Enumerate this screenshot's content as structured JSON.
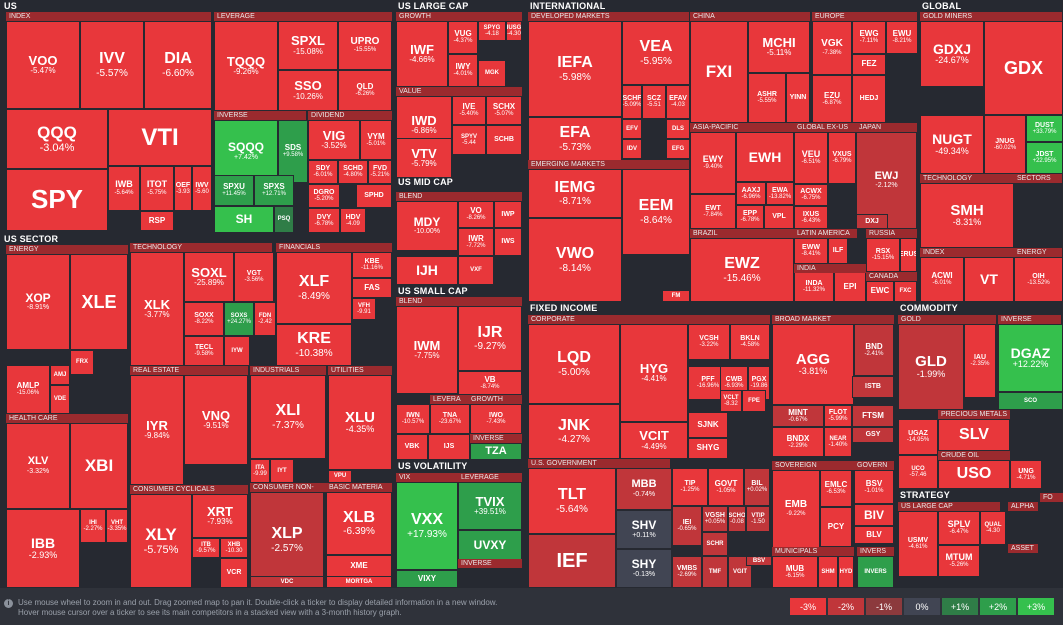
{
  "colors": {
    "r3": "#e8373b",
    "r2": "#c0363a",
    "r1": "#8c3a3d",
    "z": "#414553",
    "g1": "#2f7d47",
    "g2": "#2e9e4b",
    "g3": "#35c04d"
  },
  "sections": [
    {
      "id": "us",
      "label": "US"
    },
    {
      "id": "us-large-cap",
      "label": "US LARGE CAP"
    },
    {
      "id": "international",
      "label": "INTERNATIONAL"
    },
    {
      "id": "global",
      "label": "GLOBAL"
    },
    {
      "id": "us-sector",
      "label": "US SECTOR"
    },
    {
      "id": "us-mid-cap",
      "label": "US MID CAP"
    },
    {
      "id": "us-small-cap",
      "label": "US SMALL CAP"
    },
    {
      "id": "fixed-income",
      "label": "FIXED INCOME"
    },
    {
      "id": "commodity",
      "label": "COMMODITY"
    },
    {
      "id": "us-volatility",
      "label": "US VOLATILITY"
    },
    {
      "id": "strategy",
      "label": "STRATEGY"
    }
  ],
  "subgroups": [
    "INDEX",
    "LEVERAGE",
    "INVERSE",
    "DIVIDEND",
    "GROWTH",
    "VALUE",
    "BLEND",
    "DEVELOPED MARKETS",
    "CHINA",
    "EUROPE",
    "GOLD MINERS",
    "ASIA-PACIFIC",
    "GLOBAL EX-US",
    "JAPAN",
    "EMERGING MARKETS",
    "TECHNOLOGY",
    "SECTORS",
    "LATIN AMERICA",
    "RUSSIA",
    "BRAZIL",
    "INDIA",
    "CANADA",
    "INDEX",
    "ENERGY",
    "ENERGY",
    "TECHNOLOGY",
    "FINANCIALS",
    "REAL ESTATE",
    "INDUSTRIALS",
    "UTILITIES",
    "HEALTH CARE",
    "CONSUMER CYCLICALS",
    "CONSUMER NON-",
    "BASIC MATERIA",
    "BLEND",
    "BLEND",
    "LEVERA",
    "GROWTH",
    "INVERSE",
    "CORPORATE",
    "BROAD MARKET",
    "GOLD",
    "INVERSE",
    "LEVERAGE",
    "PRECIOUS METALS",
    "CRUDE OIL",
    "U.S. GOVERNMENT",
    "SOVEREIGN",
    "GOVERN",
    "MUNICIPALS",
    "INVERS",
    "VIX",
    "LEVERAGE",
    "INVERSE",
    "US LARGE CAP",
    "ALPHA",
    "ASSET",
    "FO"
  ],
  "tiles": [
    [
      "VOO",
      "-5.47%"
    ],
    [
      "IVV",
      "-5.57%"
    ],
    [
      "DIA",
      "-6.60%"
    ],
    [
      "QQQ",
      "-3.04%"
    ],
    [
      "VTI",
      ""
    ],
    [
      "SPY",
      ""
    ],
    [
      "IWB",
      "-5.64%"
    ],
    [
      "ITOT",
      "-5.75%"
    ],
    [
      "OEF",
      "-3.93"
    ],
    [
      "IWV",
      "-5.60"
    ],
    [
      "RSP",
      ""
    ],
    [
      "TQQQ",
      "-9.26%"
    ],
    [
      "SPXL",
      "-15.08%"
    ],
    [
      "UPRO",
      "-15.55%"
    ],
    [
      "SSO",
      "-10.26%"
    ],
    [
      "QLD",
      "-6.26%"
    ],
    [
      "SQQQ",
      "+7.42%"
    ],
    [
      "SDS",
      "+9.58%"
    ],
    [
      "SPXU",
      "+11.45%"
    ],
    [
      "SPXS",
      "+12.71%"
    ],
    [
      "SH",
      ""
    ],
    [
      "PSQ",
      ""
    ],
    [
      "VIG",
      "-3.52%"
    ],
    [
      "VYM",
      "-5.01%"
    ],
    [
      "SDY",
      "-6.01%"
    ],
    [
      "SCHD",
      "-4.80%"
    ],
    [
      "FVD",
      "-5.21%"
    ],
    [
      "DGRO",
      "-5.20%"
    ],
    [
      "SPHD",
      ""
    ],
    [
      "DVY",
      "-6.78%"
    ],
    [
      "HDV",
      "-4.09"
    ],
    [
      "IWF",
      "-4.66%"
    ],
    [
      "VUG",
      "-4.37%"
    ],
    [
      "IWY",
      "-4.01%"
    ],
    [
      "SPYG",
      "-4.18"
    ],
    [
      "IUSG",
      "-4.30"
    ],
    [
      "MGK",
      ""
    ],
    [
      "IWD",
      "-6.86%"
    ],
    [
      "IVE",
      "-5.40%"
    ],
    [
      "SCHX",
      "-5.07%"
    ],
    [
      "VTV",
      "-5.79%"
    ],
    [
      "SPYV",
      "-5.44"
    ],
    [
      "SCHB",
      ""
    ],
    [
      "MDY",
      "-10.00%"
    ],
    [
      "VO",
      "-8.26%"
    ],
    [
      "IWR",
      "-7.72%"
    ],
    [
      "IWP",
      ""
    ],
    [
      "IJH",
      ""
    ],
    [
      "VXF",
      ""
    ],
    [
      "IWS",
      ""
    ],
    [
      "IWM",
      "-7.75%"
    ],
    [
      "IJR",
      "-9.27%"
    ],
    [
      "VB",
      "-8.74%"
    ],
    [
      "IWN",
      "-10.57%"
    ],
    [
      "TNA",
      "-23.67%"
    ],
    [
      "IWO",
      "-7.43%"
    ],
    [
      "VBK",
      ""
    ],
    [
      "IJS",
      ""
    ],
    [
      "TZA",
      ""
    ],
    [
      "VXX",
      "+17.93%"
    ],
    [
      "TVIX",
      "+39.51%"
    ],
    [
      "UVXY",
      ""
    ],
    [
      "VIXY",
      ""
    ],
    [
      "IEFA",
      "-5.98%"
    ],
    [
      "VEA",
      "-5.95%"
    ],
    [
      "EFA",
      "-5.73%"
    ],
    [
      "SCHF",
      "-5.09%"
    ],
    [
      "SCZ",
      "-5.51"
    ],
    [
      "EFAV",
      "-4.03"
    ],
    [
      "EFV",
      ""
    ],
    [
      "IDV",
      ""
    ],
    [
      "DLS",
      ""
    ],
    [
      "EFG",
      ""
    ],
    [
      "FXI",
      ""
    ],
    [
      "MCHI",
      "-5.11%"
    ],
    [
      "ASHR",
      "-5.55%"
    ],
    [
      "YINN",
      ""
    ],
    [
      "VGK",
      "-7.38%"
    ],
    [
      "EWG",
      "-7.11%"
    ],
    [
      "EWU",
      "-8.21%"
    ],
    [
      "FEZ",
      ""
    ],
    [
      "EZU",
      "-6.87%"
    ],
    [
      "HEDJ",
      ""
    ],
    [
      "GDXJ",
      "-24.67%"
    ],
    [
      "GDX",
      ""
    ],
    [
      "NUGT",
      "-49.34%"
    ],
    [
      "JNUG",
      "-60.02%"
    ],
    [
      "DUST",
      "+33.79%"
    ],
    [
      "JDST",
      "+22.95%"
    ],
    [
      "EWY",
      "-9.40%"
    ],
    [
      "EWH",
      ""
    ],
    [
      "AAXJ",
      "-6.96%"
    ],
    [
      "EWA",
      "-13.82%"
    ],
    [
      "EWT",
      "-7.84%"
    ],
    [
      "EPP",
      "-6.78%"
    ],
    [
      "VPL",
      ""
    ],
    [
      "EWS",
      ""
    ],
    [
      "VEU",
      "-6.51%"
    ],
    [
      "VXUS",
      "-6.79%"
    ],
    [
      "ACWX",
      "-6.75%"
    ],
    [
      "IXUS",
      "-6.43%"
    ],
    [
      "EWJ",
      "-2.12%"
    ],
    [
      "DXJ",
      ""
    ],
    [
      "IEMG",
      "-8.71%"
    ],
    [
      "EEM",
      "-8.64%"
    ],
    [
      "VWO",
      "-8.14%"
    ],
    [
      "SMH",
      "-8.31%"
    ],
    [
      "ACWI",
      "-6.01%"
    ],
    [
      "VT",
      ""
    ],
    [
      "OIH",
      "-13.52%"
    ],
    [
      "EWW",
      "-8.41%"
    ],
    [
      "ILF",
      ""
    ],
    [
      "RSX",
      "-15.15%"
    ],
    [
      "ERUS",
      ""
    ],
    [
      "EWZ",
      "-15.46%"
    ],
    [
      "FM",
      ""
    ],
    [
      "INDA",
      "-11.32%"
    ],
    [
      "EPI",
      ""
    ],
    [
      "EWC",
      ""
    ],
    [
      "FXC",
      ""
    ],
    [
      "AFK",
      ""
    ],
    [
      "XOP",
      "-8.91%"
    ],
    [
      "XLE",
      ""
    ],
    [
      "FRX",
      ""
    ],
    [
      "AMLP",
      "-15.06%"
    ],
    [
      "AMJ",
      ""
    ],
    [
      "VDE",
      ""
    ],
    [
      "XLK",
      "-3.77%"
    ],
    [
      "SOXL",
      "-25.89%"
    ],
    [
      "VGT",
      "-3.56%"
    ],
    [
      "SOXX",
      "-8.22%"
    ],
    [
      "SOXS",
      "+24.27%"
    ],
    [
      "FDN",
      "-2.42"
    ],
    [
      "TECL",
      "-9.58%"
    ],
    [
      "IYW",
      ""
    ],
    [
      "XLF",
      "-8.49%"
    ],
    [
      "KBE",
      "-11.16%"
    ],
    [
      "FAS",
      ""
    ],
    [
      "KRE",
      "-10.38%"
    ],
    [
      "VFH",
      "-9.91"
    ],
    [
      "XLV",
      "-3.32%"
    ],
    [
      "XBI",
      ""
    ],
    [
      "IBB",
      "-2.93%"
    ],
    [
      "IHI",
      "-2.27%"
    ],
    [
      "VHT",
      "-3.35%"
    ],
    [
      "IYR",
      "-9.84%"
    ],
    [
      "VNQ",
      "-9.51%"
    ],
    [
      "XLY",
      "-5.75%"
    ],
    [
      "XRT",
      "-7.93%"
    ],
    [
      "ITB",
      "-9.57%"
    ],
    [
      "XHB",
      "-10.30"
    ],
    [
      "VCR",
      ""
    ],
    [
      "XLI",
      "-7.37%"
    ],
    [
      "ITA",
      "-9.99"
    ],
    [
      "IYT",
      ""
    ],
    [
      "XLP",
      "-2.57%"
    ],
    [
      "VDC",
      ""
    ],
    [
      "XLU",
      "-4.35%"
    ],
    [
      "VPU",
      ""
    ],
    [
      "XLB",
      "-6.39%"
    ],
    [
      "XME",
      ""
    ],
    [
      "MORTGA",
      ""
    ],
    [
      "LQD",
      "-5.00%"
    ],
    [
      "HYG",
      "-4.41%"
    ],
    [
      "VCSH",
      "-3.22%"
    ],
    [
      "BKLN",
      "-4.58%"
    ],
    [
      "JNK",
      "-4.27%"
    ],
    [
      "PFF",
      "-16.96%"
    ],
    [
      "CWB",
      "-6.93%"
    ],
    [
      "PGX",
      "-19.86"
    ],
    [
      "VCLT",
      "-8.32"
    ],
    [
      "FPE",
      ""
    ],
    [
      "VCIT",
      "-4.49%"
    ],
    [
      "SJNK",
      ""
    ],
    [
      "SHYG",
      ""
    ],
    [
      "AGG",
      "-3.81%"
    ],
    [
      "BND",
      "-2.41%"
    ],
    [
      "MINT",
      "-0.67%"
    ],
    [
      "FLOT",
      "-5.99%"
    ],
    [
      "FTSM",
      ""
    ],
    [
      "BNDX",
      "-2.29%"
    ],
    [
      "NEAR",
      "-1.40%"
    ],
    [
      "GSY",
      ""
    ],
    [
      "ISTB",
      ""
    ],
    [
      "TLT",
      "-5.64%"
    ],
    [
      "IEF",
      ""
    ],
    [
      "MBB",
      "-0.74%"
    ],
    [
      "TIP",
      "-1.25%"
    ],
    [
      "GOVT",
      "-1.05%"
    ],
    [
      "BIL",
      "+0.02%"
    ],
    [
      "SHV",
      "+0.11%"
    ],
    [
      "SHY",
      "-0.13%"
    ],
    [
      "IEI",
      "-0.65%"
    ],
    [
      "VGSH",
      "+0.05%"
    ],
    [
      "SCHO",
      "-0.08"
    ],
    [
      "VTIP",
      "-1.50"
    ],
    [
      "SCHR",
      ""
    ],
    [
      "VMBS",
      "-2.69%"
    ],
    [
      "TMF",
      ""
    ],
    [
      "VGIT",
      ""
    ],
    [
      "BSV",
      ""
    ],
    [
      "EMB",
      "-9.22%"
    ],
    [
      "EMLC",
      "-6.53%"
    ],
    [
      "PCY",
      ""
    ],
    [
      "BSV",
      "-1.01%"
    ],
    [
      "BIV",
      ""
    ],
    [
      "BLV",
      ""
    ],
    [
      "MUB",
      "-6.15%"
    ],
    [
      "SHM",
      ""
    ],
    [
      "HYD",
      ""
    ],
    [
      "INVERS",
      ""
    ],
    [
      "GLD",
      "-1.99%"
    ],
    [
      "IAU",
      "-2.35%"
    ],
    [
      "DGAZ",
      "+12.22%"
    ],
    [
      "SCO",
      ""
    ],
    [
      "UGAZ",
      "-14.95%"
    ],
    [
      "SLV",
      ""
    ],
    [
      "USO",
      ""
    ],
    [
      "UNG",
      "-4.71%"
    ],
    [
      "UCO",
      "-57.46"
    ],
    [
      "USMV",
      "-4.61%"
    ],
    [
      "SPLV",
      "-6.47%"
    ],
    [
      "QUAL",
      "-4.30"
    ],
    [
      "MTUM",
      "-5.26%"
    ]
  ],
  "footer": {
    "hint_line1": "Use mouse wheel to zoom in and out. Drag zoomed map to pan it. Double-click a ticker to display detailed information in a new window.",
    "hint_line2": "Hover mouse cursor over a ticker to see its main competitors in a stacked view with a 3-month history graph.",
    "legend": [
      "-3%",
      "-2%",
      "-1%",
      "0%",
      "+1%",
      "+2%",
      "+3%"
    ]
  }
}
